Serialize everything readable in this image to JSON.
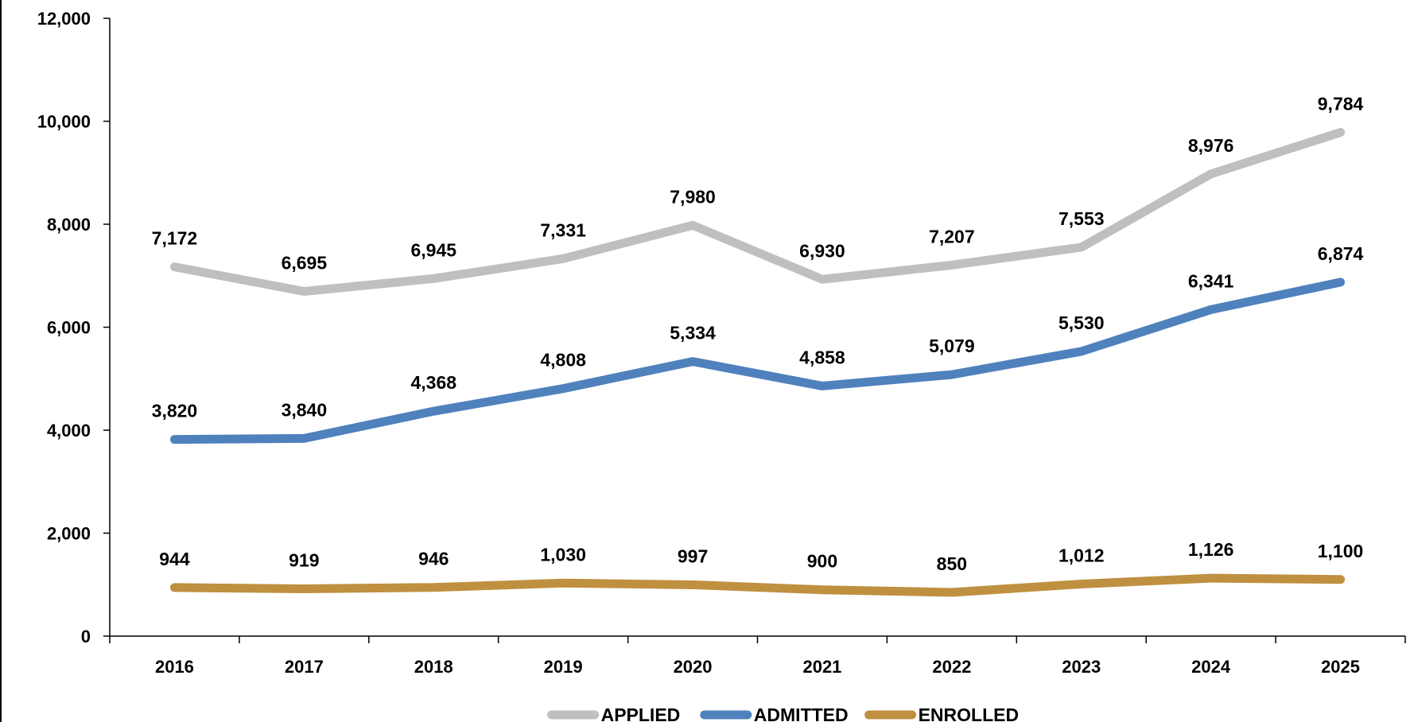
{
  "chart_data": {
    "type": "line",
    "title": "",
    "xlabel": "",
    "ylabel": "",
    "categories": [
      "2016",
      "2017",
      "2018",
      "2019",
      "2020",
      "2021",
      "2022",
      "2023",
      "2024",
      "2025"
    ],
    "ylim": [
      0,
      12000
    ],
    "yticks": [
      0,
      2000,
      4000,
      6000,
      8000,
      10000,
      12000
    ],
    "ytick_labels": [
      "0",
      "2,000",
      "4,000",
      "6,000",
      "8,000",
      "10,000",
      "12,000"
    ],
    "grid": false,
    "legend_position": "bottom",
    "series": [
      {
        "name": "APPLIED",
        "color": "#BFBFBF",
        "values": [
          7172,
          6695,
          6945,
          7331,
          7980,
          6930,
          7207,
          7553,
          8976,
          9784
        ],
        "labels": [
          "7,172",
          "6,695",
          "6,945",
          "7,331",
          "7,980",
          "6,930",
          "7,207",
          "7,553",
          "8,976",
          "9,784"
        ]
      },
      {
        "name": "ADMITTED",
        "color": "#4F81BD",
        "values": [
          3820,
          3840,
          4368,
          4808,
          5334,
          4858,
          5079,
          5530,
          6341,
          6874
        ],
        "labels": [
          "3,820",
          "3,840",
          "4,368",
          "4,808",
          "5,334",
          "4,858",
          "5,079",
          "5,530",
          "6,341",
          "6,874"
        ]
      },
      {
        "name": "ENROLLED",
        "color": "#BF9040",
        "values": [
          944,
          919,
          946,
          1030,
          997,
          900,
          850,
          1012,
          1126,
          1100
        ],
        "labels": [
          "944",
          "919",
          "946",
          "1,030",
          "997",
          "900",
          "850",
          "1,012",
          "1,126",
          "1,100"
        ]
      }
    ]
  }
}
